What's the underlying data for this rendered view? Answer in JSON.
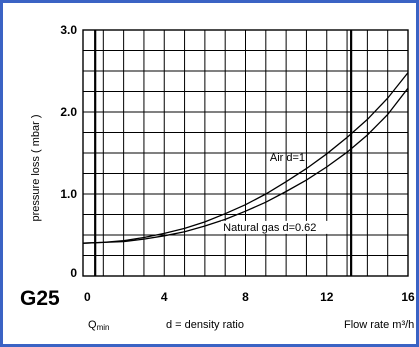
{
  "colors": {
    "border": "#3b63c4",
    "grid": "#000000",
    "curve": "#000000",
    "background": "#ffffff"
  },
  "model_label": "G25",
  "chart_data": {
    "type": "line",
    "xlabel": "Flow rate m³/h",
    "ylabel": "pressure loss ( mbar )",
    "x_note": "d = density ratio",
    "qmin_label": "Q",
    "qmin_sub": "min",
    "xlim": [
      0,
      16
    ],
    "ylim": [
      0,
      3.0
    ],
    "x_minor_step": 1,
    "y_minor_step": 0.25,
    "grid": true,
    "x_tick_values": [
      0,
      4,
      8,
      12,
      16
    ],
    "x_tick_labels": [
      "0",
      "4",
      "8",
      "12",
      "16"
    ],
    "y_tick_values": [
      0,
      1.0,
      2.0,
      3.0
    ],
    "y_tick_labels": [
      "0",
      "1.0",
      "2.0",
      "3.0"
    ],
    "markers": [
      0.6,
      13.2
    ],
    "series": [
      {
        "name": "Air d=1",
        "x": [
          0,
          1,
          2,
          3,
          4,
          5,
          6,
          7,
          8,
          9,
          10,
          11,
          12,
          13,
          14,
          15,
          16
        ],
        "y": [
          0.4,
          0.41,
          0.43,
          0.47,
          0.52,
          0.58,
          0.66,
          0.76,
          0.87,
          1.0,
          1.15,
          1.31,
          1.49,
          1.69,
          1.91,
          2.17,
          2.48
        ]
      },
      {
        "name": "Natural gas  d=0.62",
        "x": [
          0,
          1,
          2,
          3,
          4,
          5,
          6,
          7,
          8,
          9,
          10,
          11,
          12,
          13,
          14,
          15,
          16
        ],
        "y": [
          0.4,
          0.41,
          0.42,
          0.45,
          0.49,
          0.54,
          0.61,
          0.69,
          0.79,
          0.9,
          1.03,
          1.17,
          1.33,
          1.51,
          1.72,
          1.97,
          2.29
        ]
      }
    ]
  }
}
